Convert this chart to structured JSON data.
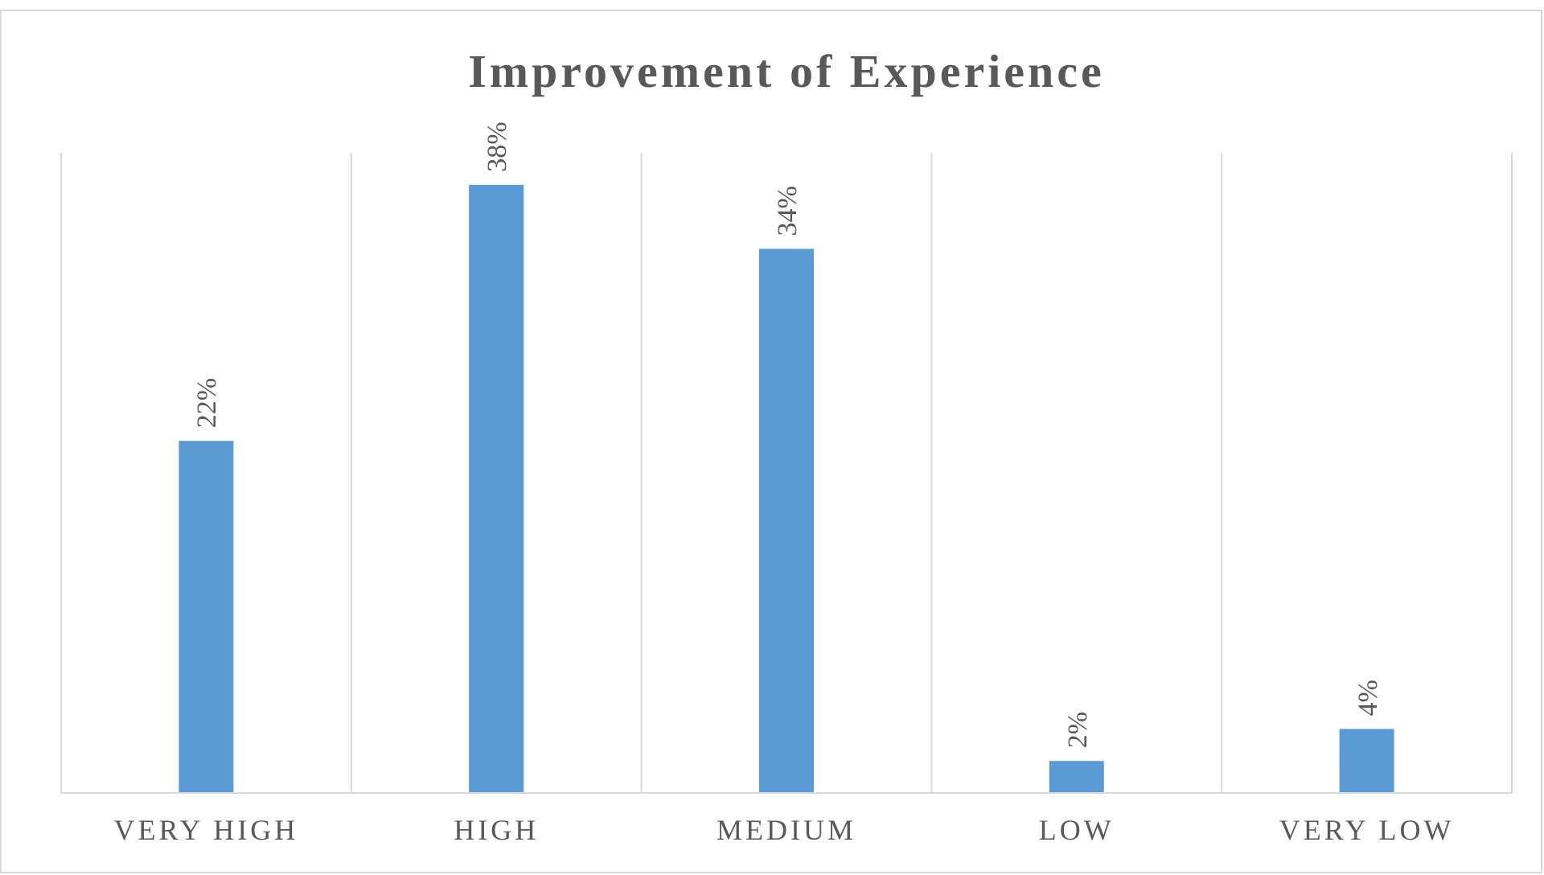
{
  "chart_data": {
    "type": "bar",
    "title": "Improvement of Experience",
    "categories": [
      "VERY HIGH",
      "HIGH",
      "MEDIUM",
      "LOW",
      "VERY LOW"
    ],
    "values": [
      22,
      38,
      34,
      2,
      4
    ],
    "value_labels": [
      "22%",
      "38%",
      "34%",
      "2%",
      "4%"
    ],
    "color": "#5b9bd5",
    "ylim": [
      0,
      40
    ],
    "grid": "x"
  }
}
